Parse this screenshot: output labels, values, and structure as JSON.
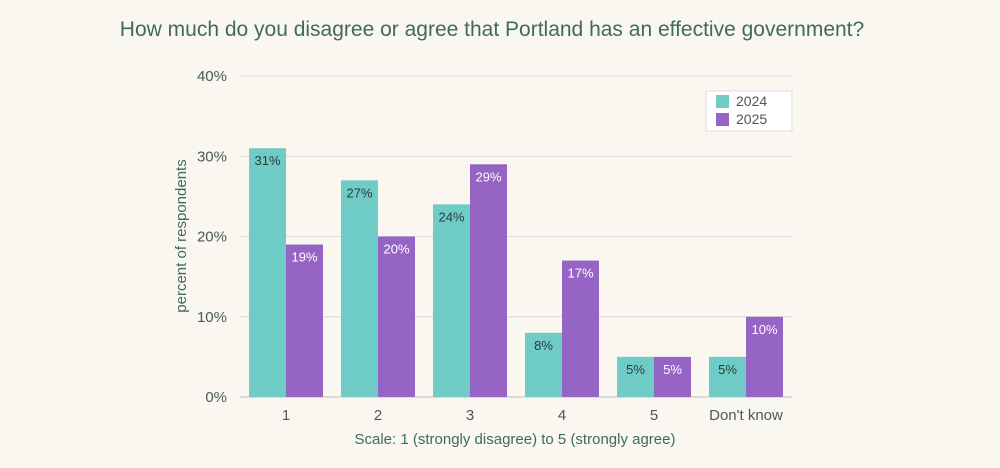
{
  "chart_data": {
    "type": "bar",
    "title": "How much do you disagree or agree that Portland has an effective government?",
    "xlabel": "Scale: 1 (strongly disagree) to 5 (strongly agree)",
    "ylabel": "percent of respondents",
    "categories": [
      "1",
      "2",
      "3",
      "4",
      "5",
      "Don't know"
    ],
    "series": [
      {
        "name": "2024",
        "color": "#6ecbc5",
        "label_color": "#2d3b38",
        "values": [
          31,
          27,
          24,
          8,
          5,
          5
        ],
        "labels": [
          "31%",
          "27%",
          "24%",
          "8%",
          "5%",
          "5%"
        ]
      },
      {
        "name": "2025",
        "color": "#9564c4",
        "label_color": "#ffffff",
        "values": [
          19,
          20,
          29,
          17,
          5,
          10
        ],
        "labels": [
          "19%",
          "20%",
          "29%",
          "17%",
          "5%",
          "10%"
        ]
      }
    ],
    "ylim": [
      0,
      40
    ],
    "yticks": [
      0,
      10,
      20,
      30,
      40
    ],
    "ytick_labels": [
      "0%",
      "10%",
      "20%",
      "30%",
      "40%"
    ],
    "grid": true,
    "legend_position": "top-right"
  },
  "colors": {
    "background": "#faf6f0",
    "gridline": "#d9d9d9",
    "title": "#3f6b5c"
  }
}
